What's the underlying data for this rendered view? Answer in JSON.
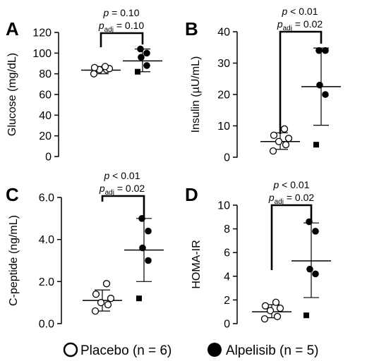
{
  "chart_data": [
    {
      "type": "scatter",
      "panel_letter": "A",
      "ylabel": "Glucose (mg/dL)",
      "ylim": [
        0,
        120
      ],
      "yticks": [
        0,
        20,
        40,
        60,
        80,
        100,
        120
      ],
      "ytick_labels": [
        "0",
        "20",
        "40",
        "60",
        "80",
        "100",
        "120"
      ],
      "stat_p": "p = 0.10",
      "stat_padj": "= 0.10",
      "groups": [
        {
          "name": "Placebo",
          "values": [
            80,
            84,
            84,
            85,
            86,
            87
          ],
          "mean": 83.5,
          "sd_low": 80,
          "sd_high": 87
        },
        {
          "name": "Alpelisib",
          "values": [
            82,
            88,
            96,
            100,
            104
          ],
          "filled_square_value": 82,
          "mean": 92.5,
          "sd_low": 82,
          "sd_high": 104
        }
      ]
    },
    {
      "type": "scatter",
      "panel_letter": "B",
      "ylabel": "Insulin (µU/mL)",
      "ylim": [
        0,
        40
      ],
      "yticks": [
        0,
        10,
        20,
        30,
        40
      ],
      "ytick_labels": [
        "0",
        "10",
        "20",
        "30",
        "40"
      ],
      "stat_p": "p < 0.01",
      "stat_padj": "= 0.02",
      "groups": [
        {
          "name": "Placebo",
          "values": [
            2,
            4,
            5,
            6,
            7,
            9
          ],
          "mean": 5.0,
          "sd_low": 2.5,
          "sd_high": 7.8
        },
        {
          "name": "Alpelisib",
          "values": [
            4,
            20,
            23,
            34,
            34
          ],
          "filled_square_value": 4,
          "mean": 22.5,
          "sd_low": 10.2,
          "sd_high": 34.8
        }
      ]
    },
    {
      "type": "scatter",
      "panel_letter": "C",
      "ylabel": "C-peptide (ng/mL)",
      "ylim": [
        0,
        6
      ],
      "yticks": [
        0,
        2,
        4,
        6
      ],
      "ytick_labels": [
        "0.0",
        "2.0",
        "4.0",
        "6.0"
      ],
      "stat_p": "p < 0.01",
      "stat_padj": "= 0.02",
      "groups": [
        {
          "name": "Placebo",
          "values": [
            0.6,
            0.9,
            1.0,
            1.2,
            1.4,
            1.9
          ],
          "mean": 1.1,
          "sd_low": 0.6,
          "sd_high": 1.6
        },
        {
          "name": "Alpelisib",
          "values": [
            1.2,
            3.0,
            3.6,
            4.4,
            5.0
          ],
          "filled_square_value": 1.2,
          "mean": 3.5,
          "sd_low": 2.0,
          "sd_high": 5.0
        }
      ]
    },
    {
      "type": "scatter",
      "panel_letter": "D",
      "ylabel": "HOMA-IR",
      "ylim": [
        0,
        10
      ],
      "yticks": [
        0,
        2,
        4,
        6,
        8,
        10
      ],
      "ytick_labels": [
        "0",
        "2",
        "4",
        "6",
        "8",
        "10"
      ],
      "stat_p": "p < 0.01",
      "stat_padj": "= 0.02",
      "groups": [
        {
          "name": "Placebo",
          "values": [
            0.4,
            0.6,
            1.1,
            1.3,
            1.5,
            1.8
          ],
          "mean": 1.0,
          "sd_low": 0.5,
          "sd_high": 1.6
        },
        {
          "name": "Alpelisib",
          "values": [
            0.7,
            4.2,
            4.6,
            7.8,
            8.6
          ],
          "filled_square_value": 0.7,
          "mean": 5.3,
          "sd_low": 2.2,
          "sd_high": 8.5
        }
      ]
    }
  ],
  "stat_padj_symbol": "p",
  "stat_padj_subscript": "adj",
  "legend": {
    "placebo_label": "Placebo (n = 6)",
    "alpelisib_label": "Alpelisib (n = 5)"
  }
}
